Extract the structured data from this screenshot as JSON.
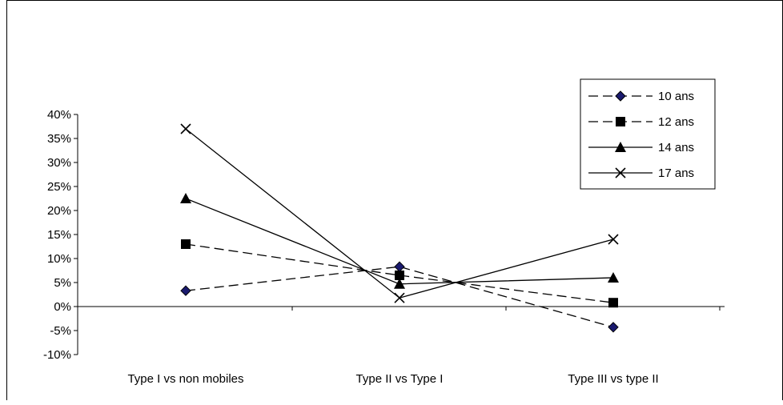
{
  "chart_data": {
    "type": "line",
    "categories": [
      "Type I vs non mobiles",
      "Type II vs Type I",
      "Type III vs type II"
    ],
    "y_ticks": [
      "40%",
      "35%",
      "30%",
      "25%",
      "20%",
      "15%",
      "10%",
      "5%",
      "0%",
      "-5%",
      "-10%"
    ],
    "ylim": [
      -10,
      40
    ],
    "series": [
      {
        "name": "10 ans",
        "values": [
          3.3,
          8.3,
          -4.3
        ],
        "marker": "diamond",
        "dash": true,
        "marker_color": "#1a1a6e"
      },
      {
        "name": "12 ans",
        "values": [
          13.0,
          6.5,
          0.8
        ],
        "marker": "square",
        "dash": true,
        "marker_color": "#000000"
      },
      {
        "name": "14 ans",
        "values": [
          22.5,
          4.7,
          6.0
        ],
        "marker": "triangle",
        "dash": false,
        "marker_color": "#000000"
      },
      {
        "name": "17 ans",
        "values": [
          37.0,
          1.8,
          14.0
        ],
        "marker": "x",
        "dash": false,
        "marker_color": "#000000"
      }
    ],
    "legend_position": "top-right",
    "grid": false
  }
}
